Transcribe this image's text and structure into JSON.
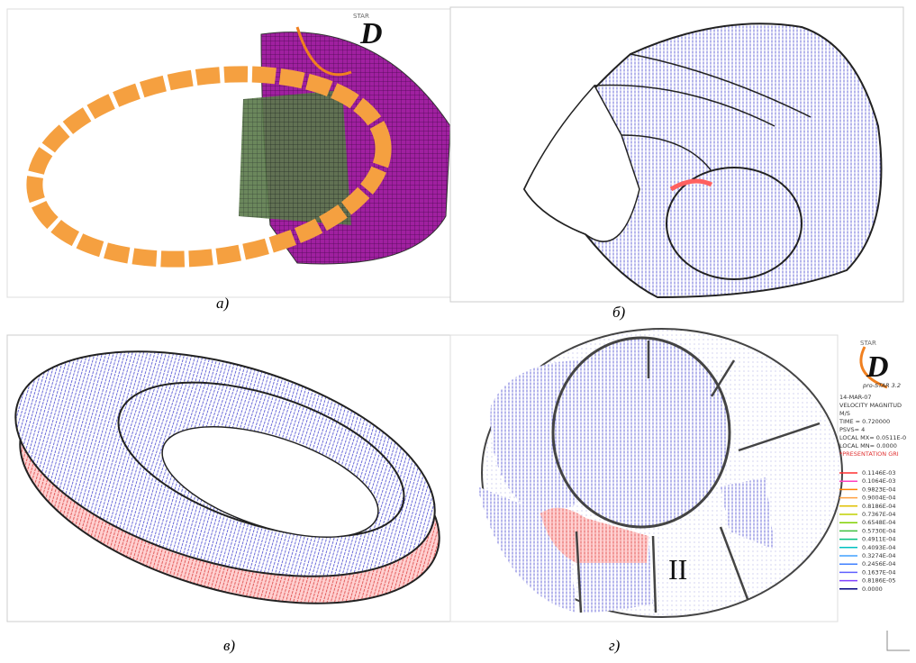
{
  "panels": [
    {
      "caption": "а)",
      "logo_star": "STAR",
      "logo_letter": "D"
    },
    {
      "caption": "б)"
    },
    {
      "caption": "в)"
    },
    {
      "caption": "г)",
      "region_label": "II"
    }
  ],
  "legend_block": {
    "logo_star": "STAR",
    "logo_letter": "D",
    "software": "pro-STAR 3.2",
    "date": "14-MAR-07",
    "quantity": "VELOCITY MAGNITUD",
    "units": "M/S",
    "time": "TIME = 0.720000",
    "psvs": "PSVS= 4",
    "local_max": "LOCAL MX= 0.0511E-0",
    "local_min": "LOCAL MN= 0.0000",
    "grid_note": "*PRESENTATION GRI",
    "levels": [
      {
        "label": "0.1146E-03",
        "color": "#ff3030"
      },
      {
        "label": "0.1064E-03",
        "color": "#ff40c0"
      },
      {
        "label": "0.9823E-04",
        "color": "#ff8000"
      },
      {
        "label": "0.9004E-04",
        "color": "#ffa040"
      },
      {
        "label": "0.8186E-04",
        "color": "#e0c000"
      },
      {
        "label": "0.7367E-04",
        "color": "#c0d000"
      },
      {
        "label": "0.6548E-04",
        "color": "#80d000"
      },
      {
        "label": "0.5730E-04",
        "color": "#40c040"
      },
      {
        "label": "0.4911E-04",
        "color": "#00c080"
      },
      {
        "label": "0.4093E-04",
        "color": "#00c0c0"
      },
      {
        "label": "0.3274E-04",
        "color": "#40a0ff"
      },
      {
        "label": "0.2456E-04",
        "color": "#4080ff"
      },
      {
        "label": "0.1637E-04",
        "color": "#6060ff"
      },
      {
        "label": "0.8186E-05",
        "color": "#8040ff"
      },
      {
        "label": "0.0000",
        "color": "#000080"
      }
    ]
  }
}
